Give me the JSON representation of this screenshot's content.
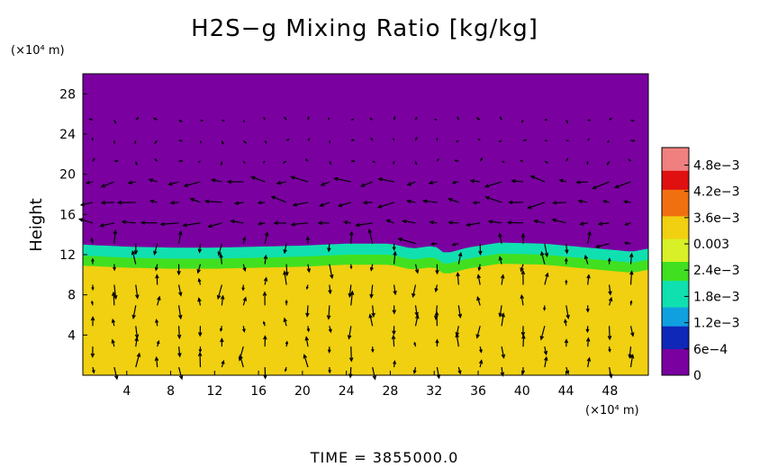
{
  "chart_data": {
    "type": "heatmap",
    "title": "H2S−g Mixing Ratio [kg/kg]",
    "xlabel": "",
    "ylabel": "Height",
    "x_unit": "(×10⁴ m)",
    "y_unit": "(×10⁴ m)",
    "xlim": [
      0,
      51.5
    ],
    "ylim": [
      0,
      30
    ],
    "x_ticks": [
      "4",
      "8",
      "12",
      "16",
      "20",
      "24",
      "28",
      "32",
      "36",
      "40",
      "44",
      "48"
    ],
    "y_ticks": [
      "4",
      "8",
      "12",
      "16",
      "20",
      "24",
      "28"
    ],
    "colorbar": {
      "range": [
        0,
        0.0052
      ],
      "tick_labels": [
        "0",
        "6e−4",
        "1.2e−3",
        "1.8e−3",
        "2.4e−3",
        "0.003",
        "3.6e−3",
        "4.2e−3",
        "4.8e−3"
      ],
      "colors": [
        "#7a00a0",
        "#1028b8",
        "#10a0e0",
        "#10e0b0",
        "#40e020",
        "#d8f028",
        "#f0d010",
        "#f07010",
        "#e01010",
        "#f08080"
      ]
    },
    "field": {
      "description_values": [
        {
          "region": "below ~10.5",
          "value": 0.0034
        },
        {
          "region": "~10.5 to ~11.5",
          "value": 0.0025
        },
        {
          "region": "~11.5 to ~12.8",
          "value": 0.0019
        },
        {
          "region": "above ~13",
          "value": 0
        }
      ],
      "interface_height": [
        [
          0,
          12.9
        ],
        [
          4,
          12.7
        ],
        [
          8,
          12.6
        ],
        [
          12,
          12.6
        ],
        [
          16,
          12.7
        ],
        [
          20,
          12.8
        ],
        [
          24,
          13.0
        ],
        [
          28,
          13.0
        ],
        [
          30,
          12.5
        ],
        [
          32,
          12.8
        ],
        [
          33,
          12.0
        ],
        [
          35,
          12.6
        ],
        [
          38,
          13.1
        ],
        [
          42,
          13.0
        ],
        [
          46,
          12.6
        ],
        [
          50,
          12.2
        ],
        [
          51.5,
          12.5
        ]
      ]
    },
    "time_label": "TIME  =  3855000.0"
  }
}
